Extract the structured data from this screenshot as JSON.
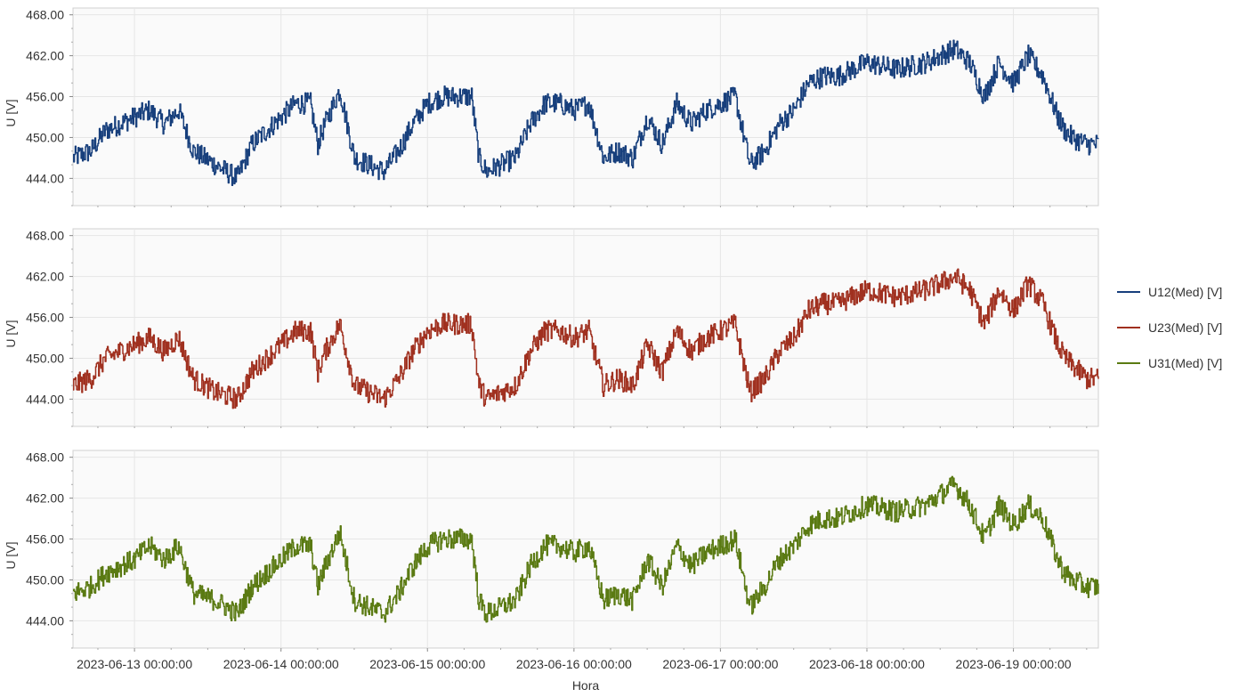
{
  "chart_data": {
    "type": "line",
    "xlabel": "Hora",
    "x_ticks": [
      "2023-06-13 00:00:00",
      "2023-06-14 00:00:00",
      "2023-06-15 00:00:00",
      "2023-06-16 00:00:00",
      "2023-06-17 00:00:00",
      "2023-06-18 00:00:00",
      "2023-06-19 00:00:00"
    ],
    "x_range_days": [
      -0.42,
      6.58
    ],
    "grid": true,
    "legend_position": "right",
    "panels": [
      {
        "ylabel": "U [V]",
        "ylim": [
          440,
          469
        ],
        "y_ticks": [
          "444.00",
          "450.00",
          "456.00",
          "462.00",
          "468.00"
        ],
        "y_tick_values": [
          444,
          450,
          456,
          462,
          468
        ],
        "series": {
          "name": "U12(Med) [V]",
          "color": "#173f7c",
          "x_days": [
            -0.42,
            -0.3,
            -0.2,
            -0.1,
            0.0,
            0.1,
            0.2,
            0.3,
            0.4,
            0.55,
            0.7,
            0.8,
            0.9,
            1.0,
            1.1,
            1.2,
            1.25,
            1.3,
            1.4,
            1.5,
            1.6,
            1.7,
            1.8,
            1.9,
            2.0,
            2.1,
            2.2,
            2.3,
            2.35,
            2.4,
            2.5,
            2.6,
            2.7,
            2.8,
            2.9,
            3.0,
            3.1,
            3.2,
            3.3,
            3.4,
            3.5,
            3.6,
            3.7,
            3.8,
            3.9,
            4.0,
            4.1,
            4.2,
            4.3,
            4.35,
            4.4,
            4.5,
            4.6,
            4.7,
            4.8,
            4.9,
            5.0,
            5.2,
            5.4,
            5.6,
            5.7,
            5.8,
            5.9,
            6.0,
            6.1,
            6.2,
            6.3,
            6.35,
            6.4,
            6.5,
            6.58
          ],
          "values": [
            447,
            448,
            451,
            452,
            453,
            454,
            452,
            454,
            448,
            446,
            444,
            449,
            451,
            453,
            455,
            455,
            449,
            452,
            457,
            447,
            446,
            445,
            448,
            452,
            455,
            456,
            456,
            456,
            447,
            445,
            446,
            447,
            452,
            455,
            455,
            454,
            455,
            447,
            448,
            447,
            453,
            449,
            455,
            452,
            454,
            455,
            456,
            446,
            448,
            450,
            452,
            454,
            458,
            459,
            459,
            460,
            461,
            460,
            461,
            463,
            461,
            456,
            461,
            458,
            462,
            459,
            453,
            451,
            450,
            449,
            449
          ]
        }
      },
      {
        "ylabel": "U [V]",
        "ylim": [
          440,
          469
        ],
        "y_ticks": [
          "444.00",
          "450.00",
          "456.00",
          "462.00",
          "468.00"
        ],
        "y_tick_values": [
          444,
          450,
          456,
          462,
          468
        ],
        "series": {
          "name": "U23(Med) [V]",
          "color": "#a0301f",
          "x_days": [
            -0.42,
            -0.3,
            -0.2,
            -0.1,
            0.0,
            0.1,
            0.2,
            0.3,
            0.4,
            0.55,
            0.7,
            0.8,
            0.9,
            1.0,
            1.1,
            1.2,
            1.25,
            1.3,
            1.4,
            1.5,
            1.6,
            1.7,
            1.8,
            1.9,
            2.0,
            2.1,
            2.2,
            2.3,
            2.35,
            2.4,
            2.5,
            2.6,
            2.7,
            2.8,
            2.9,
            3.0,
            3.1,
            3.2,
            3.3,
            3.4,
            3.5,
            3.6,
            3.7,
            3.8,
            3.9,
            4.0,
            4.1,
            4.2,
            4.3,
            4.35,
            4.4,
            4.5,
            4.6,
            4.7,
            4.8,
            4.9,
            5.0,
            5.2,
            5.4,
            5.6,
            5.7,
            5.8,
            5.9,
            6.0,
            6.1,
            6.2,
            6.3,
            6.35,
            6.4,
            6.5,
            6.58
          ],
          "values": [
            446,
            447,
            450,
            451,
            452,
            453,
            451,
            453,
            447,
            445,
            444,
            448,
            450,
            452,
            454,
            454,
            448,
            451,
            455,
            446,
            445,
            444,
            447,
            451,
            454,
            455,
            455,
            455,
            446,
            444,
            445,
            446,
            451,
            454,
            454,
            453,
            454,
            446,
            447,
            446,
            452,
            448,
            454,
            451,
            453,
            454,
            455,
            445,
            447,
            449,
            451,
            453,
            457,
            458,
            458,
            459,
            460,
            459,
            460,
            462,
            460,
            455,
            460,
            457,
            461,
            458,
            452,
            450,
            449,
            447,
            447
          ]
        }
      },
      {
        "ylabel": "U [V]",
        "ylim": [
          440,
          469
        ],
        "y_ticks": [
          "444.00",
          "450.00",
          "456.00",
          "462.00",
          "468.00"
        ],
        "y_tick_values": [
          444,
          450,
          456,
          462,
          468
        ],
        "series": {
          "name": "U31(Med) [V]",
          "color": "#5a7a12",
          "x_days": [
            -0.42,
            -0.3,
            -0.2,
            -0.1,
            0.0,
            0.1,
            0.2,
            0.3,
            0.4,
            0.55,
            0.7,
            0.8,
            0.9,
            1.0,
            1.1,
            1.2,
            1.25,
            1.3,
            1.4,
            1.5,
            1.6,
            1.7,
            1.8,
            1.9,
            2.0,
            2.1,
            2.2,
            2.3,
            2.35,
            2.4,
            2.5,
            2.6,
            2.7,
            2.8,
            2.9,
            3.0,
            3.1,
            3.2,
            3.3,
            3.4,
            3.5,
            3.6,
            3.7,
            3.8,
            3.9,
            4.0,
            4.1,
            4.2,
            4.3,
            4.35,
            4.4,
            4.5,
            4.6,
            4.7,
            4.8,
            4.9,
            5.0,
            5.2,
            5.4,
            5.6,
            5.7,
            5.8,
            5.9,
            6.0,
            6.1,
            6.2,
            6.3,
            6.35,
            6.4,
            6.5,
            6.58
          ],
          "values": [
            448,
            449,
            451,
            452,
            453,
            455,
            453,
            455,
            448,
            447,
            445,
            449,
            451,
            453,
            455,
            455,
            449,
            452,
            457,
            447,
            446,
            445,
            448,
            452,
            455,
            456,
            456,
            456,
            447,
            445,
            446,
            447,
            452,
            455,
            455,
            454,
            455,
            447,
            448,
            447,
            453,
            449,
            455,
            452,
            454,
            455,
            456,
            446,
            449,
            451,
            453,
            455,
            458,
            459,
            459,
            460,
            461,
            460,
            461,
            464,
            461,
            456,
            461,
            458,
            461,
            459,
            453,
            451,
            450,
            449,
            449
          ]
        }
      }
    ]
  }
}
